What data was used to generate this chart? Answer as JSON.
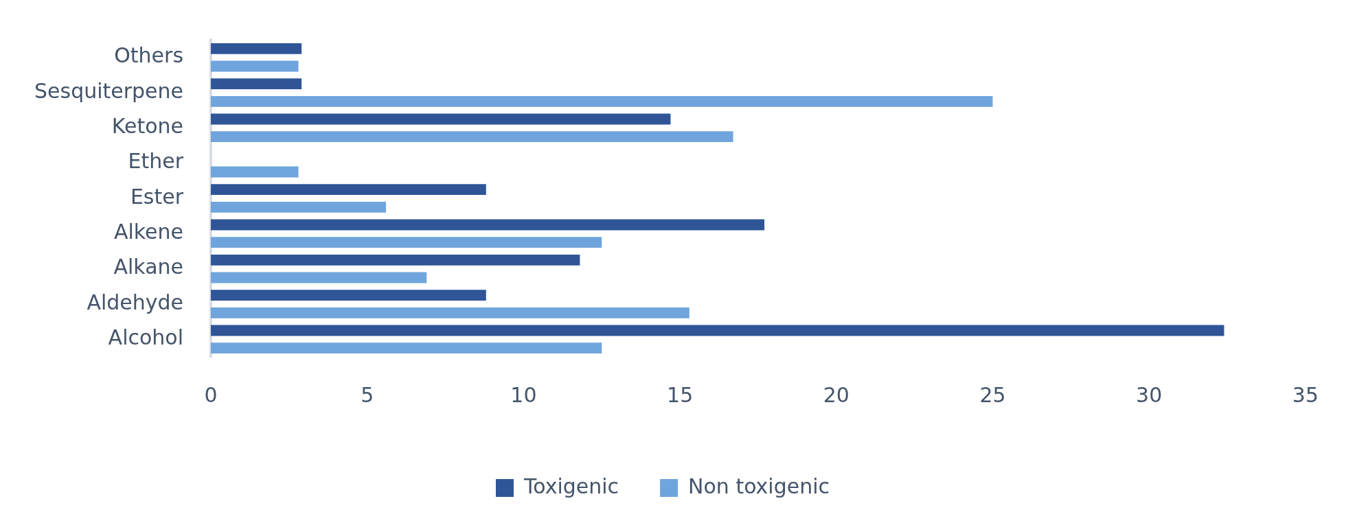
{
  "chart_data": {
    "type": "bar",
    "orientation": "horizontal",
    "categories": [
      "Others",
      "Sesquiterpene",
      "Ketone",
      "Ether",
      "Ester",
      "Alkene",
      "Alkane",
      "Aldehyde",
      "Alcohol"
    ],
    "series": [
      {
        "name": "Toxigenic",
        "color": "#2f5597",
        "values": [
          2.9,
          2.9,
          14.7,
          0,
          8.8,
          17.7,
          11.8,
          8.8,
          32.4
        ]
      },
      {
        "name": "Non toxigenic",
        "color": "#6fa5dc",
        "values": [
          2.8,
          25.0,
          16.7,
          2.8,
          5.6,
          12.5,
          6.9,
          15.3,
          12.5
        ]
      }
    ],
    "xlim": [
      0,
      35
    ],
    "xticks": [
      0,
      5,
      10,
      15,
      20,
      25,
      30,
      35
    ],
    "grid": false,
    "legend": "bottom"
  }
}
